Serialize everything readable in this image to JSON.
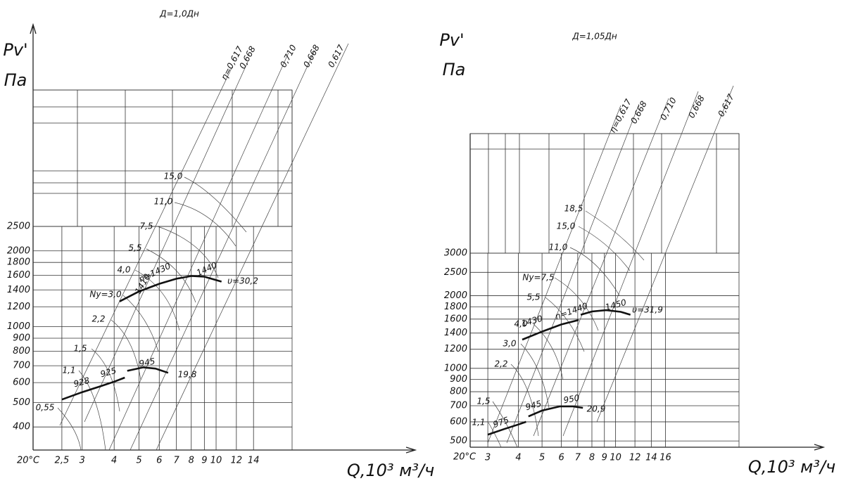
{
  "chart_data": [
    {
      "type": "line",
      "title": "Д=1,0Дн",
      "y_label": "Pv'",
      "y_unit": "Па",
      "x_label": "Q,10³ м³/ч",
      "x_origin_label": "20°C",
      "log_x": true,
      "log_y": true,
      "grid": true,
      "color": "#111",
      "xlim": [
        1.93,
        19.8
      ],
      "ylim": [
        324,
        8700
      ],
      "xticks": [
        {
          "value": 2.5,
          "label": "2,5"
        },
        3,
        4,
        5,
        6,
        7,
        8,
        9,
        10,
        12,
        14
      ],
      "yticks": [
        400,
        500,
        600,
        700,
        800,
        900,
        1000,
        1200,
        1400,
        1600,
        1800,
        2000,
        2500
      ],
      "series": [
        {
          "x": [
            4.2,
            5,
            6,
            7,
            8,
            9,
            10.5
          ],
          "values": [
            1260,
            1380,
            1480,
            1550,
            1590,
            1580,
            1510
          ]
        },
        {
          "x": [
            2.5,
            3,
            3.5,
            4,
            4.4,
            4.45,
            4.5,
            5.2,
            5.8,
            6.5
          ],
          "values": [
            514,
            550,
            578,
            605,
            628,
            null,
            668,
            690,
            682,
            656
          ]
        }
      ],
      "annotations": [
        "15,0",
        "11,0",
        "7,5",
        "5,5",
        "4,0",
        "Ny=3,0",
        "2,2",
        "1,5",
        "1,1",
        "0,55",
        "19,8",
        "υ=30,2",
        "n=1430",
        "1440",
        "1410",
        "928",
        "925",
        "945",
        "η=0,617",
        "0,668",
        "0,710",
        "0,668",
        "0,617"
      ]
    },
    {
      "type": "line",
      "title": "Д=1,05Дн",
      "y_label": "Pv'",
      "y_unit": "Па",
      "x_label": "Q,10³ м³/ч",
      "x_origin_label": "20°C",
      "log_x": true,
      "log_y": true,
      "grid": true,
      "color": "#111",
      "xlim": [
        2.54,
        32
      ],
      "ylim": [
        471,
        9400
      ],
      "xticks": [
        3,
        4,
        5,
        6,
        7,
        8,
        9,
        10,
        12,
        14,
        16
      ],
      "yticks": [
        500,
        600,
        700,
        800,
        900,
        1000,
        1200,
        1400,
        1600,
        1800,
        2000,
        2500,
        3000
      ],
      "series": [
        {
          "x": [
            4.15,
            5,
            6,
            7.06,
            7.13,
            7.2,
            8,
            9.15,
            10.5,
            11.5
          ],
          "values": [
            1315,
            1420,
            1520,
            1586,
            null,
            1668,
            1720,
            1742,
            1715,
            1668
          ]
        },
        {
          "x": [
            3,
            3.5,
            4,
            4.3,
            4.35,
            4.4,
            5,
            5.9,
            6.7,
            7.35
          ],
          "values": [
            531,
            560,
            585,
            600,
            null,
            632,
            668,
            695,
            695,
            686
          ]
        }
      ],
      "annotations": [
        "18,5",
        "15,0",
        "11,0",
        "Ny=7,5",
        "5,5",
        "4,0",
        "3,0",
        "2,2",
        "1,5",
        "1,1",
        "20,9",
        "υ=31,9",
        "n=1440",
        "1450",
        "1430",
        "950",
        "945",
        "975",
        "η=0,617",
        "0,668",
        "0,710",
        "0,668",
        "0,617"
      ]
    }
  ]
}
